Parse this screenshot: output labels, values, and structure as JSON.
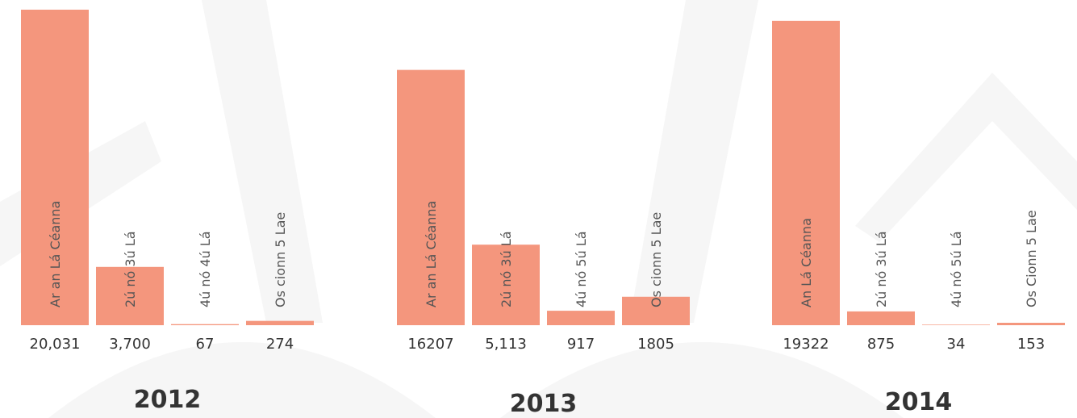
{
  "chart_data": [
    {
      "type": "bar",
      "title": "2012",
      "color": "#f4967d",
      "categories": [
        "Ar an Lá Céanna",
        "2ú nó 3ú Lá",
        "4ú nó 4ú Lá",
        "Os cionn 5 Lae"
      ],
      "values": [
        20031,
        3700,
        67,
        274
      ],
      "value_labels": [
        "20,031",
        "3,700",
        "67",
        "274"
      ]
    },
    {
      "type": "bar",
      "title": "2013",
      "color": "#f4967d",
      "categories": [
        "Ar an Lá Céanna",
        "2ú nó 3ú Lá",
        "4ú nó 5ú Lá",
        "Os cionn 5 Lae"
      ],
      "values": [
        16207,
        5113,
        917,
        1805
      ],
      "value_labels": [
        "16207",
        "5,113",
        "917",
        "1805"
      ]
    },
    {
      "type": "bar",
      "title": "2014",
      "color": "#f4967d",
      "categories": [
        "An Lá Céanna",
        "2ú nó 3ú Lá",
        "4ú nó 5ú Lá",
        "Os Cionn 5 Lae"
      ],
      "values": [
        19322,
        875,
        34,
        153
      ],
      "value_labels": [
        "19322",
        "875",
        "34",
        "153"
      ]
    }
  ]
}
